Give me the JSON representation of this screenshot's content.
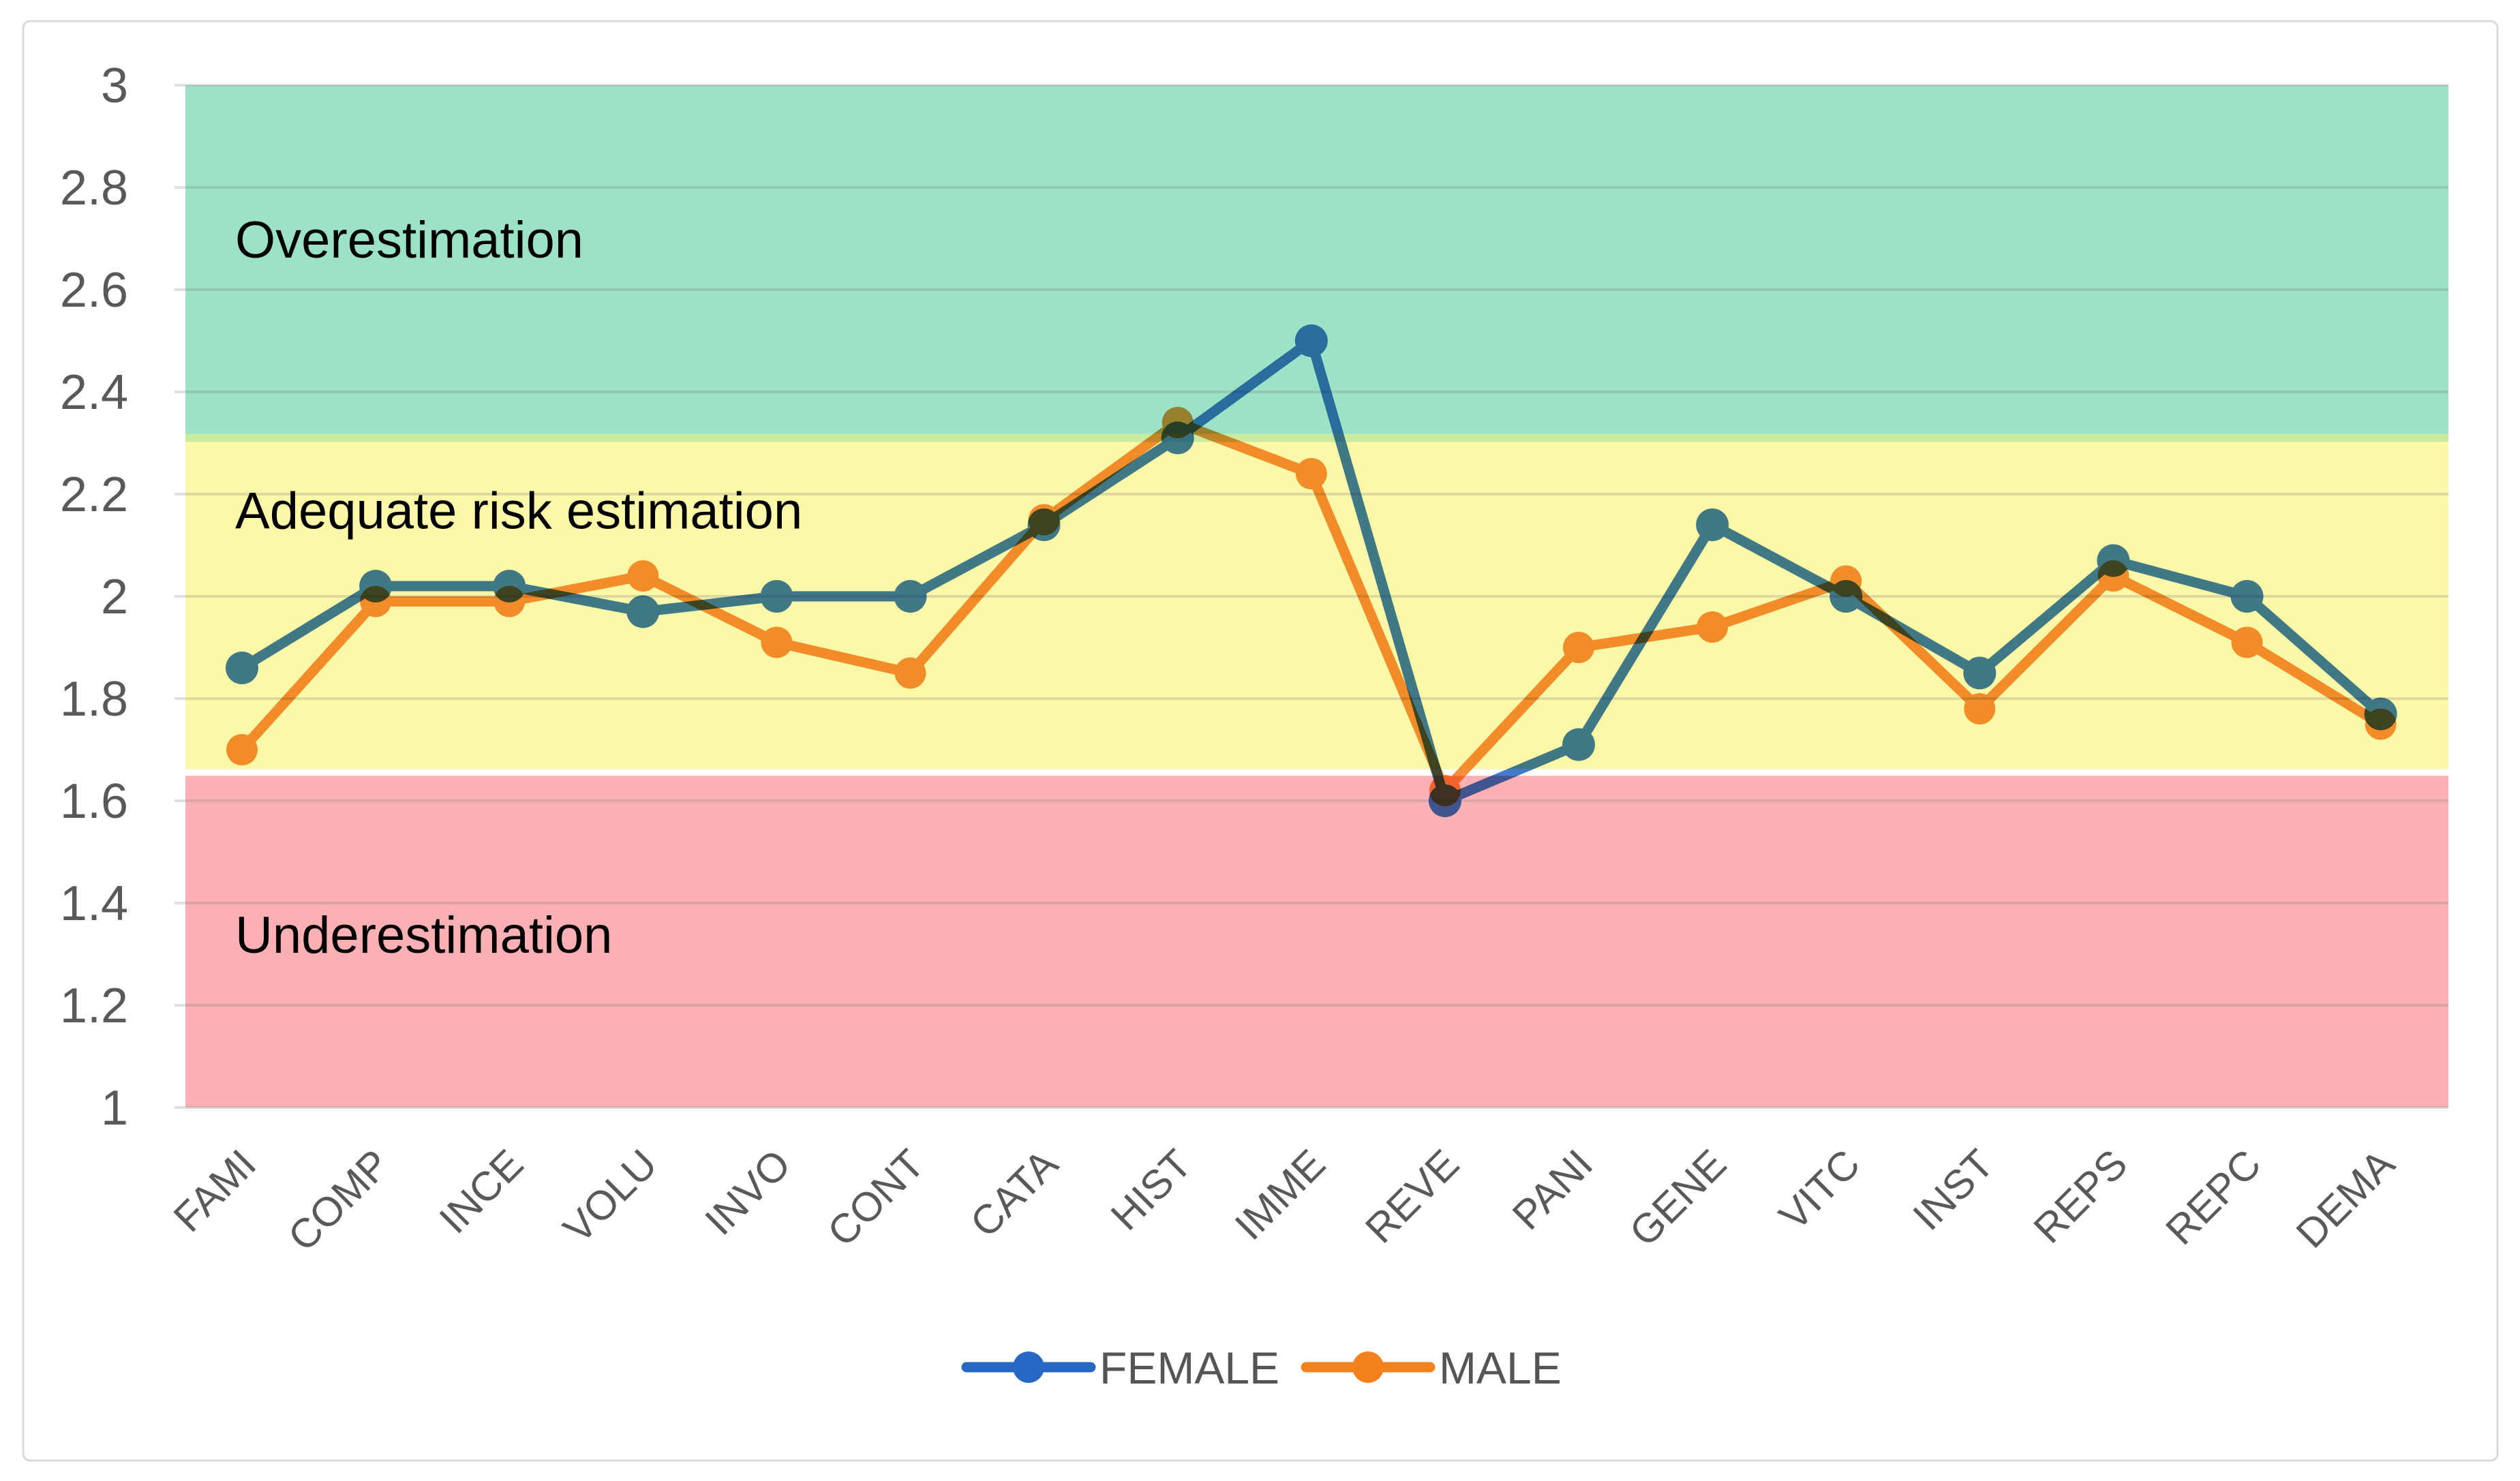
{
  "window": {
    "background": "#FFFFFF",
    "border_color": "#D9D9D9"
  },
  "chart_data": {
    "type": "line",
    "title": "",
    "xlabel": "",
    "ylabel": "",
    "categories": [
      "FAMI",
      "COMP",
      "INCE",
      "VOLU",
      "INVO",
      "CONT",
      "CATA",
      "HIST",
      "IMME",
      "REVE",
      "PANI",
      "GENE",
      "VITC",
      "INST",
      "REPS",
      "REPC",
      "DEMA"
    ],
    "series": [
      {
        "name": "FEMALE",
        "color": "#2667C4",
        "marker": "circle",
        "values": [
          1.86,
          2.02,
          2.02,
          1.97,
          2.0,
          2.0,
          2.14,
          2.31,
          2.5,
          1.6,
          1.71,
          2.14,
          2.0,
          1.85,
          2.07,
          2.0,
          1.77
        ]
      },
      {
        "name": "MALE",
        "color": "#F5801E",
        "marker": "circle",
        "values": [
          1.7,
          1.99,
          1.99,
          2.04,
          1.91,
          1.85,
          2.15,
          2.34,
          2.24,
          1.62,
          1.9,
          1.94,
          2.03,
          1.78,
          2.04,
          1.91,
          1.75
        ]
      }
    ],
    "ylim": [
      1,
      3
    ],
    "ytick_values": [
      3,
      2.8,
      2.6,
      2.4,
      2.2,
      2,
      1.8,
      1.6,
      1.4,
      1.2,
      1
    ],
    "ytick_labels": [
      "3",
      "2.8",
      "2.6",
      "2.4",
      "2.2",
      "2",
      "1.8",
      "1.6",
      "1.4",
      "1.2",
      "1"
    ],
    "grid": true,
    "legend_position": "bottom",
    "bands": [
      {
        "label": "Overestimation",
        "from": 2.318,
        "to": 3.0,
        "color": "#9BE2C6",
        "label_color": "#000000",
        "label_v": 2.7
      },
      {
        "label": "Adequate risk estimation",
        "from": 1.662,
        "to": 2.302,
        "color": "#FBF8A8",
        "label_color": "#000000",
        "label_v": 2.17
      },
      {
        "label": "Underestimation",
        "from": 1.0,
        "to": 1.649,
        "color": "#FBB1B4",
        "label_color": "#000000",
        "label_v": 1.34
      }
    ],
    "band_boundary_strip_color": "#C8EBA0",
    "gridline_color": "#808080",
    "axis_label_color": "#595959",
    "legend_text_color": "#555555"
  }
}
